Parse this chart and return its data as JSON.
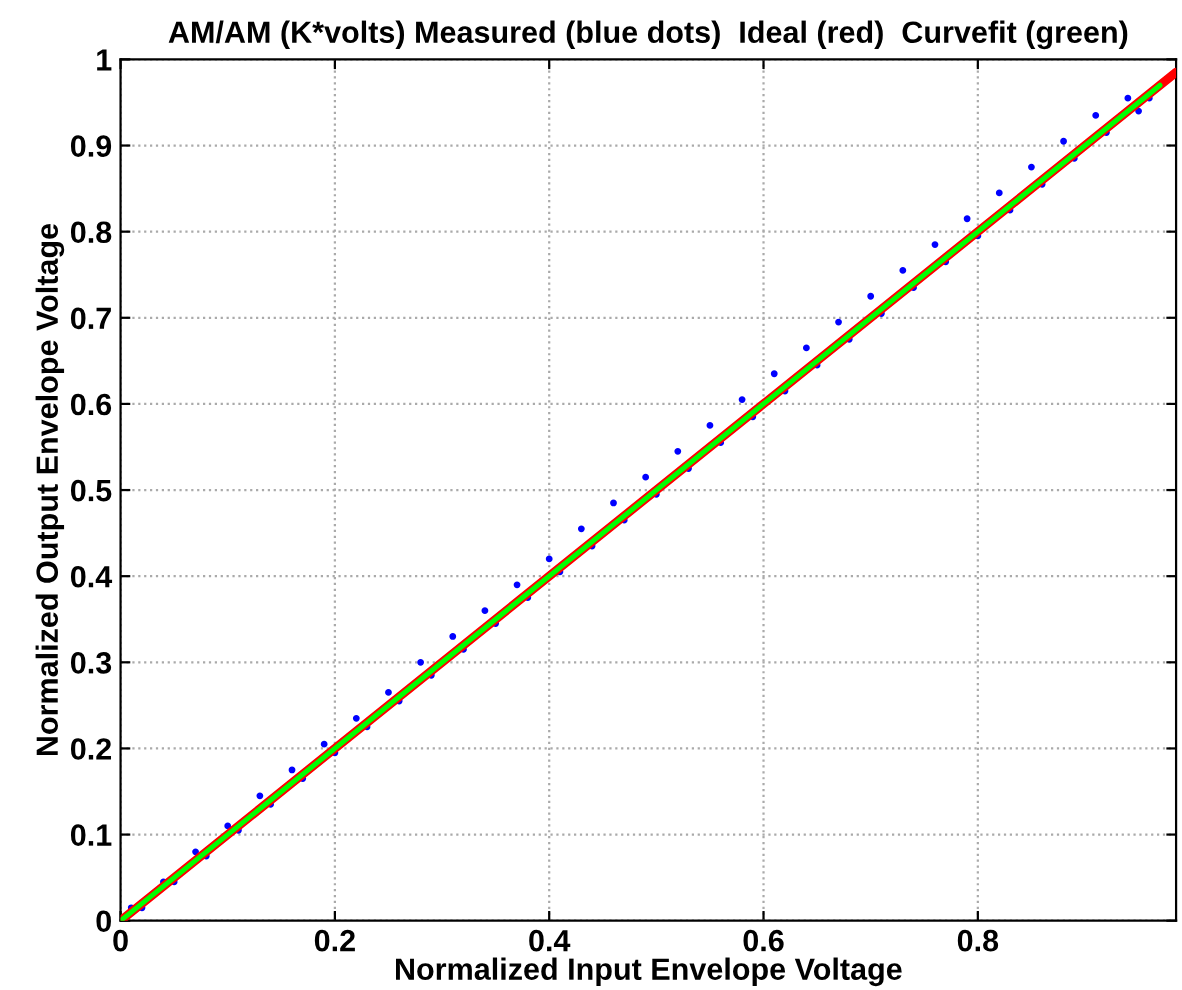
{
  "chart_data": {
    "type": "scatter",
    "title": "AM/AM (K*volts) Measured (blue dots)  Ideal (red)  Curvefit (green)",
    "xlabel": "Normalized Input Envelope Voltage",
    "ylabel": "Normalized Output Envelope Voltage",
    "xlim": [
      0,
      0.985
    ],
    "ylim": [
      0,
      1
    ],
    "xticks": [
      0,
      0.2,
      0.4,
      0.6,
      0.8
    ],
    "yticks": [
      0,
      0.1,
      0.2,
      0.3,
      0.4,
      0.5,
      0.6,
      0.7,
      0.8,
      0.9,
      1
    ],
    "grid": true,
    "series": [
      {
        "marker": "circle",
        "color": "#0000ff",
        "x": [
          0.01,
          0.02,
          0.04,
          0.05,
          0.07,
          0.08,
          0.1,
          0.11,
          0.13,
          0.14,
          0.16,
          0.17,
          0.19,
          0.2,
          0.22,
          0.23,
          0.25,
          0.26,
          0.28,
          0.29,
          0.31,
          0.32,
          0.34,
          0.35,
          0.37,
          0.38,
          0.4,
          0.41,
          0.43,
          0.44,
          0.46,
          0.47,
          0.49,
          0.5,
          0.52,
          0.53,
          0.55,
          0.56,
          0.58,
          0.59,
          0.61,
          0.62,
          0.64,
          0.65,
          0.67,
          0.68,
          0.7,
          0.71,
          0.73,
          0.74,
          0.76,
          0.77,
          0.79,
          0.8,
          0.82,
          0.83,
          0.85,
          0.86,
          0.88,
          0.89,
          0.91,
          0.92,
          0.94,
          0.95,
          0.96
        ],
        "values": [
          0.015,
          0.015,
          0.045,
          0.045,
          0.08,
          0.075,
          0.11,
          0.105,
          0.145,
          0.135,
          0.175,
          0.165,
          0.205,
          0.195,
          0.235,
          0.225,
          0.265,
          0.255,
          0.3,
          0.285,
          0.33,
          0.315,
          0.36,
          0.345,
          0.39,
          0.375,
          0.42,
          0.405,
          0.455,
          0.435,
          0.485,
          0.465,
          0.515,
          0.495,
          0.545,
          0.525,
          0.575,
          0.555,
          0.605,
          0.585,
          0.635,
          0.615,
          0.665,
          0.645,
          0.695,
          0.675,
          0.725,
          0.705,
          0.755,
          0.735,
          0.785,
          0.765,
          0.815,
          0.795,
          0.845,
          0.825,
          0.875,
          0.855,
          0.905,
          0.885,
          0.935,
          0.915,
          0.955,
          0.94,
          0.955
        ]
      },
      {
        "type": "line",
        "color": "#ff0000",
        "x": [
          0,
          0.985
        ],
        "values": [
          0,
          0.985
        ]
      },
      {
        "type": "line",
        "color": "#00ff00",
        "x": [
          0,
          0.97
        ],
        "values": [
          0,
          0.97
        ]
      }
    ]
  }
}
